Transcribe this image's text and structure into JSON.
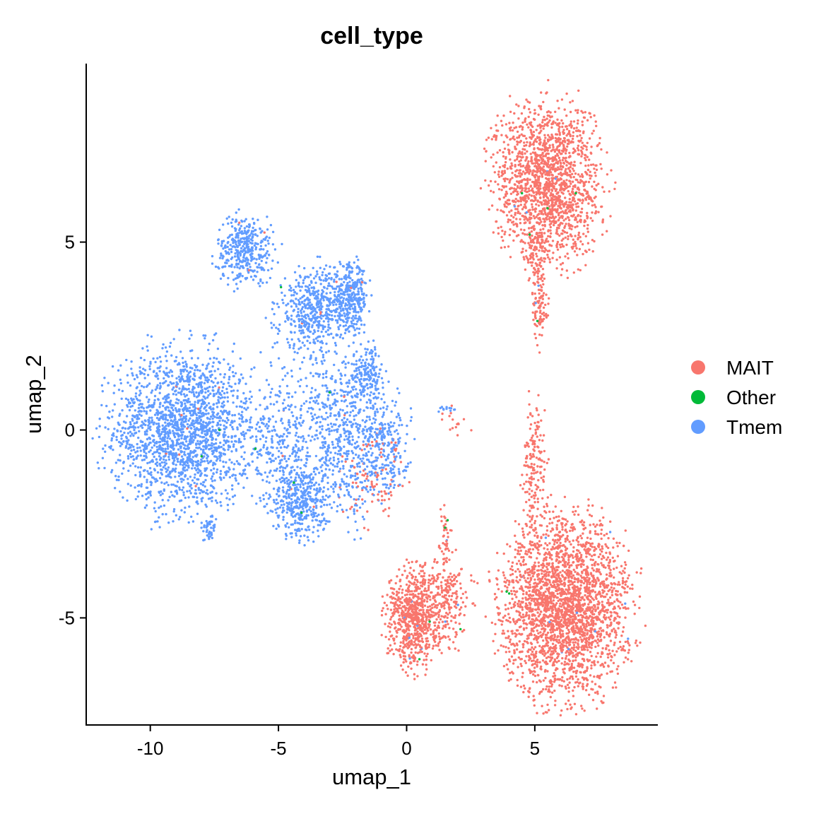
{
  "chart_data": {
    "type": "scatter",
    "title": "cell_type",
    "xlabel": "umap_1",
    "ylabel": "umap_2",
    "xlim": [
      -12.5,
      9.8
    ],
    "ylim": [
      -7.85,
      9.75
    ],
    "xticks": [
      -10,
      -5,
      0,
      5
    ],
    "xtick_labels": [
      "-10",
      "-5",
      "0",
      "5"
    ],
    "yticks": [
      -5,
      0,
      5
    ],
    "ytick_labels": [
      "-5",
      "0",
      "5"
    ],
    "grid": false,
    "legend_position": "right",
    "legend": [
      {
        "label": "MAIT",
        "color": "#F8766D"
      },
      {
        "label": "Other",
        "color": "#00BA38"
      },
      {
        "label": "Tmem",
        "color": "#619CFF"
      }
    ],
    "clusters": [
      {
        "group": "Tmem",
        "cx": -8.7,
        "cy": 0.0,
        "sx": 1.35,
        "sy": 1.05,
        "n": 1900
      },
      {
        "group": "Tmem",
        "cx": -6.3,
        "cy": 4.8,
        "sx": 0.55,
        "sy": 0.45,
        "n": 380
      },
      {
        "group": "Tmem",
        "cx": -3.6,
        "cy": 3.2,
        "sx": 0.75,
        "sy": 0.55,
        "n": 480
      },
      {
        "group": "Tmem",
        "cx": -2.2,
        "cy": 3.5,
        "sx": 0.35,
        "sy": 0.45,
        "n": 320
      },
      {
        "group": "Tmem",
        "cx": -4.2,
        "cy": -1.9,
        "sx": 0.55,
        "sy": 0.45,
        "n": 380
      },
      {
        "group": "Tmem",
        "cx": -4.7,
        "cy": -0.5,
        "sx": 0.8,
        "sy": 0.8,
        "n": 300
      },
      {
        "group": "Tmem",
        "cx": -2.3,
        "cy": -0.4,
        "sx": 0.7,
        "sy": 1.0,
        "n": 450
      },
      {
        "group": "Tmem",
        "cx": -1.5,
        "cy": 1.5,
        "sx": 0.3,
        "sy": 0.35,
        "n": 160
      },
      {
        "group": "Tmem",
        "cx": -0.8,
        "cy": -0.4,
        "sx": 0.45,
        "sy": 0.65,
        "n": 220
      },
      {
        "group": "Tmem",
        "cx": -7.7,
        "cy": -2.7,
        "sx": 0.15,
        "sy": 0.2,
        "n": 40
      },
      {
        "group": "Tmem",
        "cx": -3.5,
        "cy": 1.2,
        "sx": 1.0,
        "sy": 0.8,
        "n": 160
      },
      {
        "group": "Tmem",
        "cx": 1.6,
        "cy": 0.55,
        "sx": 0.15,
        "sy": 0.05,
        "n": 12
      },
      {
        "group": "MAIT",
        "cx": 5.5,
        "cy": 6.6,
        "sx": 1.0,
        "sy": 1.05,
        "n": 1700
      },
      {
        "group": "MAIT",
        "cx": 5.1,
        "cy": 4.0,
        "sx": 0.18,
        "sy": 0.75,
        "n": 120
      },
      {
        "group": "MAIT",
        "cx": 5.25,
        "cy": 3.1,
        "sx": 0.15,
        "sy": 0.3,
        "n": 50
      },
      {
        "group": "MAIT",
        "cx": 6.2,
        "cy": -4.7,
        "sx": 1.2,
        "sy": 1.15,
        "n": 2600
      },
      {
        "group": "MAIT",
        "cx": 0.3,
        "cy": -5.0,
        "sx": 0.5,
        "sy": 0.65,
        "n": 700
      },
      {
        "group": "MAIT",
        "cx": 1.5,
        "cy": -4.5,
        "sx": 0.5,
        "sy": 0.6,
        "n": 230
      },
      {
        "group": "MAIT",
        "cx": 5.0,
        "cy": -1.0,
        "sx": 0.22,
        "sy": 0.85,
        "n": 170
      },
      {
        "group": "MAIT",
        "cx": 1.5,
        "cy": -2.8,
        "sx": 0.15,
        "sy": 0.4,
        "n": 40
      },
      {
        "group": "MAIT",
        "cx": -1.3,
        "cy": -1.4,
        "sx": 0.6,
        "sy": 0.6,
        "n": 90
      },
      {
        "group": "MAIT",
        "cx": 2.0,
        "cy": 0.2,
        "sx": 0.3,
        "sy": 0.3,
        "n": 15
      },
      {
        "group": "Other",
        "cx": 0.0,
        "cy": 0.0,
        "sx": 6.0,
        "sy": 4.0,
        "n": 0
      }
    ],
    "other_points": [
      [
        -4.9,
        3.8
      ],
      [
        -3.0,
        1.0
      ],
      [
        -7.3,
        0.0
      ],
      [
        -8.0,
        -0.7
      ],
      [
        -5.9,
        -0.5
      ],
      [
        -4.4,
        -1.4
      ],
      [
        -4.1,
        -2.2
      ],
      [
        4.5,
        6.3
      ],
      [
        5.5,
        5.9
      ],
      [
        6.6,
        6.3
      ],
      [
        4.8,
        5.2
      ],
      [
        5.1,
        2.9
      ],
      [
        1.5,
        -2.6
      ],
      [
        1.6,
        -2.4
      ],
      [
        3.9,
        -4.3
      ],
      [
        4.0,
        -4.35
      ],
      [
        0.9,
        -5.1
      ],
      [
        2.1,
        -5.3
      ],
      [
        0.5,
        -6.1
      ]
    ]
  }
}
